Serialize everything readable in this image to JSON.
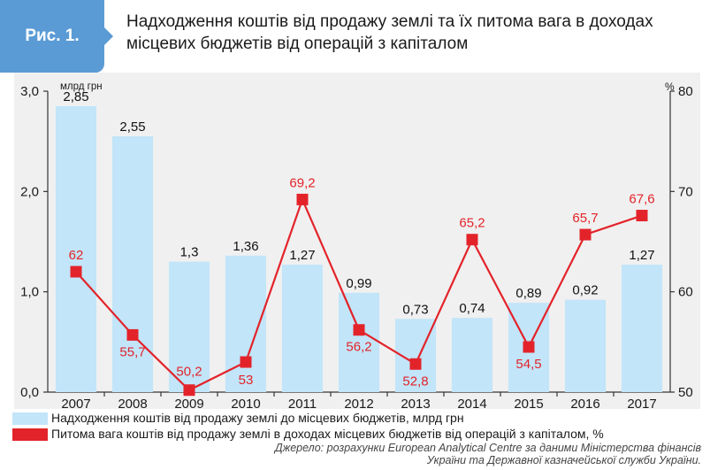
{
  "header": {
    "badge": "Рис. 1.",
    "title": "Надходження коштів від продажу землі та їх питома вага в доходах місцевих бюджетів від операцій з капіталом"
  },
  "colors": {
    "badge": "#5a9bd5",
    "bar": "#c2e5f9",
    "line": "#e3232a",
    "panel": "#f0f0f0"
  },
  "chart_data": {
    "type": "bar",
    "categories": [
      "2007",
      "2008",
      "2009",
      "2010",
      "2011",
      "2012",
      "2013",
      "2014",
      "2015",
      "2016",
      "2017"
    ],
    "series": [
      {
        "name": "Надходження коштів від продажу землі до місцевих бюджетів, млрд грн",
        "type": "bar",
        "axis": "left",
        "values": [
          2.85,
          2.55,
          1.3,
          1.36,
          1.27,
          0.99,
          0.73,
          0.74,
          0.89,
          0.92,
          1.27
        ],
        "labels": [
          "2,85",
          "2,55",
          "1,3",
          "1,36",
          "1,27",
          "0,99",
          "0,73",
          "0,74",
          "0,89",
          "0,92",
          "1,27"
        ]
      },
      {
        "name": "Питома вага коштів від продажу землі в доходах місцевих бюджетів від операцій з капіталом, %",
        "type": "line",
        "axis": "right",
        "values": [
          62,
          55.7,
          50.2,
          53,
          69.2,
          56.2,
          52.8,
          65.2,
          54.5,
          65.7,
          67.6
        ],
        "labels": [
          "62",
          "55,7",
          "50,2",
          "53",
          "69,2",
          "56,2",
          "52,8",
          "65,2",
          "54,5",
          "65,7",
          "67,6"
        ]
      }
    ],
    "y_left": {
      "unit": "млрд грн",
      "ylim": [
        0,
        3
      ],
      "ticks": [
        "0,0",
        "1,0",
        "2,0",
        "3,0"
      ]
    },
    "y_right": {
      "unit": "%",
      "ylim": [
        50,
        80
      ],
      "ticks": [
        "50",
        "60",
        "70",
        "80"
      ]
    },
    "grid": false,
    "legend": "bottom"
  },
  "source": "Джерело: розрахунки European Analytical Centre за даними Міністерства фінансів України та Державної казначейської служби України."
}
